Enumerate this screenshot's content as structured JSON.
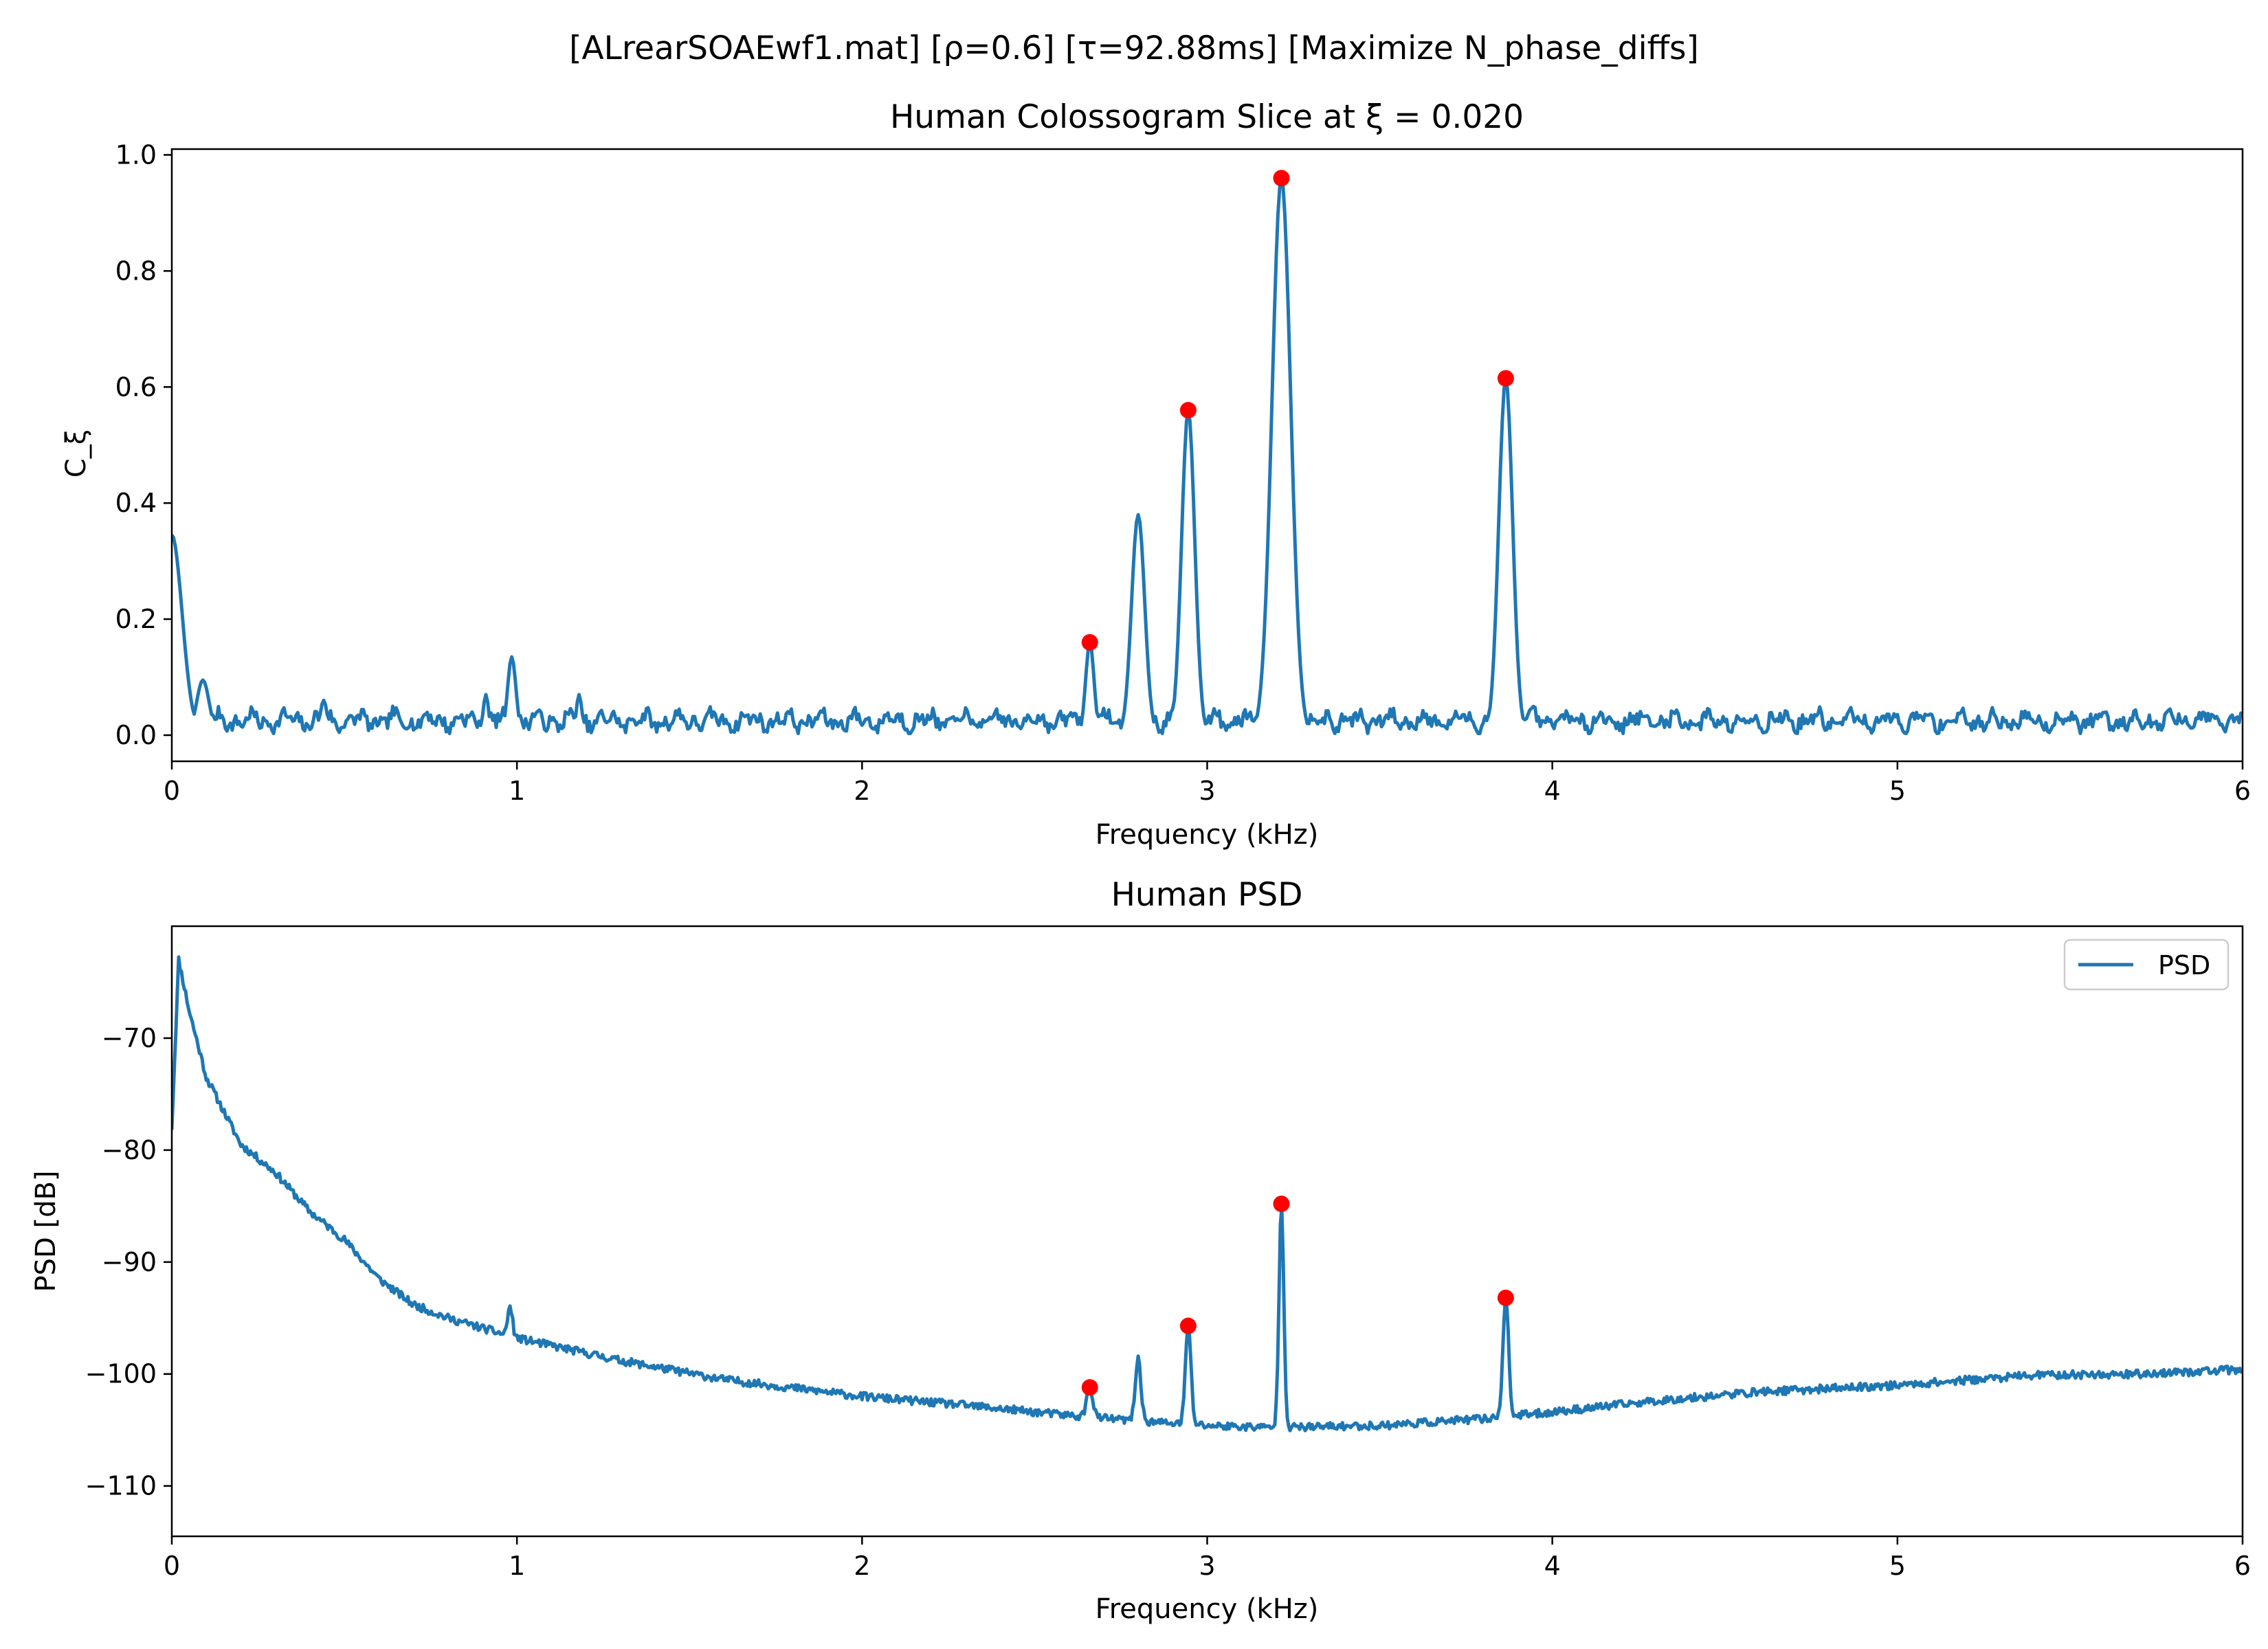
{
  "suptitle": "[ALrearSOAEwf1.mat]   [ρ=0.6]   [τ=92.88ms]   [Maximize N_phase_diffs]",
  "colors": {
    "line": "#1f77b4",
    "marker": "#ff0000",
    "frame": "#000000"
  },
  "chart_data": [
    {
      "type": "line",
      "title": "Human Colossogram Slice at ξ = 0.020",
      "xlabel": "Frequency (kHz)",
      "ylabel": "C_ξ",
      "xlim": [
        0,
        6
      ],
      "ylim": [
        -0.045,
        1.01
      ],
      "xticks": [
        0,
        1,
        2,
        3,
        4,
        5,
        6
      ],
      "xtick_labels": [
        "0",
        "1",
        "2",
        "3",
        "4",
        "5",
        "6"
      ],
      "yticks": [
        0.0,
        0.2,
        0.4,
        0.6,
        0.8,
        1.0
      ],
      "ytick_labels": [
        "0.0",
        "0.2",
        "0.4",
        "0.6",
        "0.8",
        "1.0"
      ],
      "grid": false,
      "baseline": {
        "level": 0.025,
        "amplitude": 0.014,
        "seed": 7
      },
      "features": [
        {
          "x": 0.0,
          "value": 0.345,
          "width": 0.03
        },
        {
          "x": 0.09,
          "value": 0.095,
          "width": 0.018
        },
        {
          "x": 0.44,
          "value": 0.06,
          "width": 0.01
        },
        {
          "x": 0.91,
          "value": 0.07,
          "width": 0.008
        },
        {
          "x": 0.985,
          "value": 0.135,
          "width": 0.012
        },
        {
          "x": 1.18,
          "value": 0.07,
          "width": 0.008
        },
        {
          "x": 2.66,
          "value": 0.16,
          "width": 0.012
        },
        {
          "x": 2.8,
          "value": 0.38,
          "width": 0.019
        },
        {
          "x": 2.945,
          "value": 0.56,
          "width": 0.019
        },
        {
          "x": 3.215,
          "value": 0.96,
          "width": 0.027
        },
        {
          "x": 3.865,
          "value": 0.615,
          "width": 0.02
        }
      ],
      "series": [
        {
          "peaks_x": [
            2.66,
            2.945,
            3.215,
            3.865
          ],
          "peaks_y": [
            0.16,
            0.56,
            0.96,
            0.615
          ]
        }
      ]
    },
    {
      "type": "line",
      "title": "Human PSD",
      "xlabel": "Frequency (kHz)",
      "ylabel": "PSD [dB]",
      "xlim": [
        0,
        6
      ],
      "ylim": [
        -114.5,
        -60.0
      ],
      "xticks": [
        0,
        1,
        2,
        3,
        4,
        5,
        6
      ],
      "xtick_labels": [
        "0",
        "1",
        "2",
        "3",
        "4",
        "5",
        "6"
      ],
      "yticks": [
        -110,
        -100,
        -90,
        -80,
        -70
      ],
      "ytick_labels": [
        "−110",
        "−100",
        "−90",
        "−80",
        "−70"
      ],
      "grid": false,
      "legend": {
        "position": "upper-right"
      },
      "trend": {
        "x": [
          0.0,
          0.02,
          0.05,
          0.1,
          0.15,
          0.2,
          0.3,
          0.4,
          0.5,
          0.6,
          0.7,
          0.8,
          1.0,
          1.3,
          1.6,
          2.0,
          2.3,
          2.6,
          2.8,
          3.0,
          3.2,
          3.5,
          3.8,
          4.0,
          4.3,
          4.6,
          5.0,
          5.4,
          5.7,
          6.0
        ],
        "y": [
          -78.0,
          -63.0,
          -67.5,
          -73.5,
          -76.5,
          -79.5,
          -82.0,
          -85.5,
          -88.0,
          -91.5,
          -93.8,
          -95.0,
          -96.8,
          -98.8,
          -100.5,
          -102.0,
          -102.8,
          -103.7,
          -104.2,
          -104.6,
          -104.8,
          -104.6,
          -104.0,
          -103.4,
          -102.4,
          -101.6,
          -101.0,
          -100.1,
          -100.0,
          -99.6
        ]
      },
      "noise": {
        "amplitude": 0.35,
        "seed": 11
      },
      "features": [
        {
          "x": 0.98,
          "value": 2.6,
          "width": 0.007
        },
        {
          "x": 2.66,
          "value": 2.6,
          "width": 0.009
        },
        {
          "x": 2.8,
          "value": 5.6,
          "width": 0.008
        },
        {
          "x": 2.945,
          "value": 8.8,
          "width": 0.008
        },
        {
          "x": 3.215,
          "value": 20.0,
          "width": 0.007
        },
        {
          "x": 3.865,
          "value": 10.8,
          "width": 0.008
        }
      ],
      "series": [
        {
          "name": "PSD",
          "peaks_x": [
            2.66,
            2.945,
            3.215,
            3.865
          ],
          "peaks_y": [
            -101.2,
            -95.7,
            -84.8,
            -93.2
          ]
        }
      ]
    }
  ]
}
